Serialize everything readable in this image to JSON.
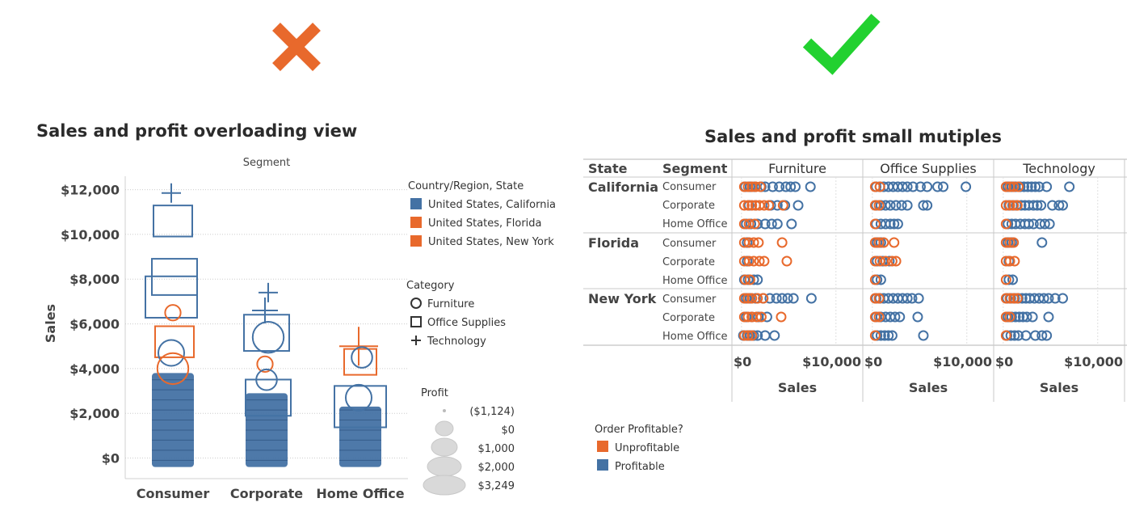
{
  "colors": {
    "california": "#4472a4",
    "florida": "#e8692c",
    "new_york": "#e8692c",
    "profitable": "#4472a4",
    "unprofitable": "#e8692c",
    "bad_mark": "#e8692c",
    "good_mark": "#22d130"
  },
  "icons": {
    "bad": "cross-mark-icon",
    "good": "check-mark-icon"
  },
  "chart_data": [
    {
      "type": "scatter",
      "title": "Sales and profit overloading view",
      "column_header": "Segment",
      "ylabel": "Sales",
      "categories": [
        "Consumer",
        "Corporate",
        "Home Office"
      ],
      "y_ticks": [
        "$0",
        "$2,000",
        "$4,000",
        "$6,000",
        "$8,000",
        "$10,000",
        "$12,000"
      ],
      "ylim": [
        -450,
        12600
      ],
      "legend_color": {
        "title": "Country/Region, State",
        "items": [
          "United States, California",
          "United States, Florida",
          "United States, New York"
        ]
      },
      "legend_shape": {
        "title": "Category",
        "items": [
          "Furniture",
          "Office Supplies",
          "Technology"
        ]
      },
      "legend_size": {
        "title": "Profit",
        "items": [
          "($1,124)",
          "$0",
          "$1,000",
          "$2,000",
          "$3,249"
        ]
      },
      "notable_marks": [
        {
          "segment": "Consumer",
          "shape": "Technology",
          "state": "United States, California",
          "sales": 11850
        },
        {
          "segment": "Consumer",
          "shape": "Office Supplies",
          "state": "United States, California",
          "sales": 10600
        },
        {
          "segment": "Consumer",
          "shape": "Office Supplies",
          "state": "United States, California",
          "sales": 8100
        },
        {
          "segment": "Consumer",
          "shape": "Office Supplies",
          "state": "United States, California",
          "sales": 7200
        },
        {
          "segment": "Consumer",
          "shape": "Furniture",
          "state": "United States, New York",
          "sales": 6500
        },
        {
          "segment": "Consumer",
          "shape": "Office Supplies",
          "state": "United States, New York",
          "sales": 5200
        },
        {
          "segment": "Consumer",
          "shape": "Furniture",
          "state": "United States, California",
          "sales": 4700
        },
        {
          "segment": "Consumer",
          "shape": "Furniture",
          "state": "United States, New York",
          "sales": 4000
        },
        {
          "segment": "Corporate",
          "shape": "Technology",
          "state": "United States, California",
          "sales": 7400
        },
        {
          "segment": "Corporate",
          "shape": "Technology",
          "state": "United States, California",
          "sales": 6600
        },
        {
          "segment": "Corporate",
          "shape": "Office Supplies",
          "state": "United States, California",
          "sales": 5600
        },
        {
          "segment": "Corporate",
          "shape": "Furniture",
          "state": "United States, California",
          "sales": 5400
        },
        {
          "segment": "Corporate",
          "shape": "Furniture",
          "state": "United States, New York",
          "sales": 4200
        },
        {
          "segment": "Corporate",
          "shape": "Furniture",
          "state": "United States, California",
          "sales": 3500
        },
        {
          "segment": "Corporate",
          "shape": "Office Supplies",
          "state": "United States, California",
          "sales": 2700
        },
        {
          "segment": "Home Office",
          "shape": "Technology",
          "state": "United States, New York",
          "sales": 5000
        },
        {
          "segment": "Home Office",
          "shape": "Office Supplies",
          "state": "United States, New York",
          "sales": 4300
        },
        {
          "segment": "Home Office",
          "shape": "Furniture",
          "state": "United States, California",
          "sales": 4500
        },
        {
          "segment": "Home Office",
          "shape": "Furniture",
          "state": "United States, California",
          "sales": 2700
        },
        {
          "segment": "Home Office",
          "shape": "Office Supplies",
          "state": "United States, California",
          "sales": 2300
        }
      ],
      "dense_band": [
        {
          "segment": "Consumer",
          "from": -400,
          "to": 3800
        },
        {
          "segment": "Corporate",
          "from": -400,
          "to": 2900
        },
        {
          "segment": "Home Office",
          "from": -400,
          "to": 2300
        }
      ]
    },
    {
      "type": "scatter",
      "title": "Sales and profit small mutiples",
      "row_headers": [
        "State",
        "Segment"
      ],
      "columns": [
        "Furniture",
        "Office Supplies",
        "Technology"
      ],
      "states": [
        "California",
        "Florida",
        "New York"
      ],
      "segments": [
        "Consumer",
        "Corporate",
        "Home Office"
      ],
      "xlabel": "Sales",
      "x_ticks": [
        "$0",
        "$10,000"
      ],
      "xlim": [
        -500,
        12500
      ],
      "legend": {
        "title": "Order Profitable?",
        "items": [
          "Unprofitable",
          "Profitable"
        ]
      },
      "series": [
        {
          "state": "California",
          "segment": "Consumer",
          "category": "Furniture",
          "unprofitable": [
            300,
            700,
            1100,
            1500,
            2000
          ],
          "profitable": [
            400,
            900,
            1400,
            2100,
            2500,
            3300,
            4000,
            4700,
            5200,
            5700,
            7300
          ]
        },
        {
          "state": "California",
          "segment": "Corporate",
          "category": "Furniture",
          "unprofitable": [
            300,
            700,
            1100,
            1500,
            1900,
            2400,
            2900,
            4400
          ],
          "profitable": [
            800,
            1500,
            3100,
            3800,
            4600,
            6000
          ]
        },
        {
          "state": "California",
          "segment": "Home Office",
          "category": "Furniture",
          "unprofitable": [
            300,
            800,
            1400
          ],
          "profitable": [
            500,
            1000,
            1700,
            2500,
            3200,
            3800,
            5300
          ]
        },
        {
          "state": "Florida",
          "segment": "Consumer",
          "category": "Furniture",
          "unprofitable": [
            300,
            800,
            1300,
            1800,
            4300
          ],
          "profitable": [
            600
          ]
        },
        {
          "state": "Florida",
          "segment": "Corporate",
          "category": "Furniture",
          "unprofitable": [
            300,
            800,
            1300,
            1900,
            2400,
            4800
          ],
          "profitable": [
            600
          ]
        },
        {
          "state": "Florida",
          "segment": "Home Office",
          "category": "Furniture",
          "unprofitable": [
            400,
            900
          ],
          "profitable": [
            300,
            700,
            1300,
            1700
          ]
        },
        {
          "state": "New York",
          "segment": "Consumer",
          "category": "Furniture",
          "unprofitable": [
            300,
            700,
            1100,
            1700,
            2300
          ],
          "profitable": [
            500,
            900,
            1500,
            2300,
            3000,
            3700,
            4300,
            4900,
            5500,
            7400
          ]
        },
        {
          "state": "New York",
          "segment": "Corporate",
          "category": "Furniture",
          "unprofitable": [
            300,
            700,
            1100,
            1600,
            2100,
            4200
          ],
          "profitable": [
            500,
            1100,
            1800,
            2700
          ]
        },
        {
          "state": "New York",
          "segment": "Home Office",
          "category": "Furniture",
          "unprofitable": [
            300,
            700,
            1100
          ],
          "profitable": [
            200,
            600,
            900,
            1300,
            1700,
            2500,
            3500
          ]
        },
        {
          "state": "California",
          "segment": "Consumer",
          "category": "Office Supplies",
          "unprofitable": [
            300,
            800
          ],
          "profitable": [
            400,
            800,
            1200,
            1700,
            2200,
            2700,
            3200,
            3700,
            4300,
            5100,
            5800,
            6900,
            7500,
            9900
          ]
        },
        {
          "state": "California",
          "segment": "Corporate",
          "category": "Office Supplies",
          "unprofitable": [
            300,
            700
          ],
          "profitable": [
            400,
            900,
            1400,
            1900,
            2500,
            3100,
            3700,
            5400,
            5800
          ]
        },
        {
          "state": "California",
          "segment": "Home Office",
          "category": "Office Supplies",
          "unprofitable": [
            300
          ],
          "profitable": [
            400,
            900,
            1400,
            1900,
            2300,
            2700
          ]
        },
        {
          "state": "Florida",
          "segment": "Consumer",
          "category": "Office Supplies",
          "unprofitable": [
            300,
            700,
            1200,
            2300
          ],
          "profitable": [
            500,
            900
          ]
        },
        {
          "state": "Florida",
          "segment": "Corporate",
          "category": "Office Supplies",
          "unprofitable": [
            300,
            800,
            1400,
            2100,
            2500
          ],
          "profitable": [
            500,
            1100,
            1800
          ]
        },
        {
          "state": "Florida",
          "segment": "Home Office",
          "category": "Office Supplies",
          "unprofitable": [
            300
          ],
          "profitable": [
            500,
            900
          ]
        },
        {
          "state": "New York",
          "segment": "Consumer",
          "category": "Office Supplies",
          "unprofitable": [
            300,
            700
          ],
          "profitable": [
            400,
            800,
            1200,
            1700,
            2200,
            2700,
            3200,
            3700,
            4200,
            4900
          ]
        },
        {
          "state": "New York",
          "segment": "Corporate",
          "category": "Office Supplies",
          "unprofitable": [
            300,
            700
          ],
          "profitable": [
            400,
            900,
            1400,
            1900,
            2400,
            2900,
            4800
          ]
        },
        {
          "state": "New York",
          "segment": "Home Office",
          "category": "Office Supplies",
          "unprofitable": [
            300
          ],
          "profitable": [
            500,
            900,
            1300,
            1700,
            2100,
            5400
          ]
        },
        {
          "state": "California",
          "segment": "Consumer",
          "category": "Technology",
          "unprofitable": [
            300,
            700,
            1100,
            1600
          ],
          "profitable": [
            500,
            900,
            1300,
            1800,
            2200,
            2600,
            3000,
            3400,
            3800,
            4600,
            7000
          ]
        },
        {
          "state": "California",
          "segment": "Corporate",
          "category": "Technology",
          "unprofitable": [
            300,
            700,
            1100,
            1500
          ],
          "profitable": [
            600,
            1000,
            1400,
            1900,
            2300,
            2700,
            3200,
            3600,
            4000,
            5200,
            5900,
            6300
          ]
        },
        {
          "state": "California",
          "segment": "Home Office",
          "category": "Technology",
          "unprofitable": [
            300
          ],
          "profitable": [
            500,
            900,
            1300,
            1800,
            2300,
            2700,
            3200,
            3900,
            4400,
            4900
          ]
        },
        {
          "state": "Florida",
          "segment": "Consumer",
          "category": "Technology",
          "unprofitable": [
            300,
            700,
            1100
          ],
          "profitable": [
            500,
            900,
            4100
          ]
        },
        {
          "state": "Florida",
          "segment": "Corporate",
          "category": "Technology",
          "unprofitable": [
            300,
            700,
            1200
          ],
          "profitable": [
            600
          ]
        },
        {
          "state": "Florida",
          "segment": "Home Office",
          "category": "Technology",
          "unprofitable": [
            300
          ],
          "profitable": [
            600,
            1000
          ]
        },
        {
          "state": "New York",
          "segment": "Consumer",
          "category": "Technology",
          "unprofitable": [
            300,
            700,
            1100,
            1500
          ],
          "profitable": [
            400,
            800,
            1200,
            1600,
            2000,
            2400,
            2800,
            3300,
            3800,
            4300,
            4800,
            5500,
            6300
          ]
        },
        {
          "state": "New York",
          "segment": "Corporate",
          "category": "Technology",
          "unprofitable": [
            300,
            700
          ],
          "profitable": [
            500,
            900,
            1300,
            1700,
            2100,
            2500,
            3100,
            4800
          ]
        },
        {
          "state": "New York",
          "segment": "Home Office",
          "category": "Technology",
          "unprofitable": [
            300
          ],
          "profitable": [
            400,
            800,
            1200,
            1600,
            2400,
            3400,
            4100,
            4600
          ]
        }
      ]
    }
  ]
}
